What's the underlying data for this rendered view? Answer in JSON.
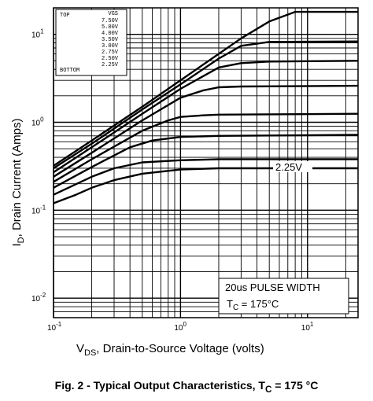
{
  "caption": {
    "text": "Fig. 2 - Typical Output Characteristics, T",
    "sub": "C",
    "suffix": " = 175 °C"
  },
  "chart_data": {
    "type": "line",
    "xscale": "log",
    "yscale": "log",
    "xlim": [
      0.1,
      25
    ],
    "ylim": [
      0.006,
      20
    ],
    "grid": true,
    "xlabel": {
      "main": "V",
      "sub": "DS",
      "rest": ", Drain-to-Source Voltage (volts)"
    },
    "ylabel": {
      "main": "I",
      "sub": "D",
      "rest": ", Drain Current (Amps)"
    },
    "x_ticks": [
      {
        "base": "10",
        "exp": "-1",
        "value": 0.1
      },
      {
        "base": "10",
        "exp": "0",
        "value": 1
      },
      {
        "base": "10",
        "exp": "1",
        "value": 10
      }
    ],
    "y_ticks": [
      {
        "base": "10",
        "exp": "-2",
        "value": 0.01
      },
      {
        "base": "10",
        "exp": "-1",
        "value": 0.1
      },
      {
        "base": "10",
        "exp": "0",
        "value": 1
      },
      {
        "base": "10",
        "exp": "1",
        "value": 10
      }
    ],
    "legend": {
      "header_left": "TOP",
      "header_right": "VGS",
      "entries": [
        "7.50V",
        "5.00V",
        "4.00V",
        "3.50V",
        "3.00V",
        "2.75V",
        "2.50V",
        "2.25V"
      ],
      "bottom_label": "BOTTOM",
      "placement": "top-left"
    },
    "annotation_label": "2.25V",
    "pulse_box": {
      "line1": "20us PULSE WIDTH",
      "line2_main": "T",
      "line2_sub": "C",
      "line2_rest": " = 175°C",
      "placement": "bottom-right"
    },
    "series": [
      {
        "name": "7.50V",
        "x": [
          0.1,
          0.2,
          0.5,
          1,
          2,
          3,
          5,
          8,
          25
        ],
        "y": [
          0.32,
          0.62,
          1.5,
          3.0,
          6.0,
          9.0,
          14,
          18,
          18
        ]
      },
      {
        "name": "5.00V",
        "x": [
          0.1,
          0.2,
          0.5,
          1,
          2,
          3,
          5,
          25
        ],
        "y": [
          0.3,
          0.57,
          1.4,
          2.7,
          5.3,
          7.4,
          8.2,
          8.3
        ]
      },
      {
        "name": "4.00V",
        "x": [
          0.1,
          0.2,
          0.5,
          1,
          2,
          3,
          5,
          25
        ],
        "y": [
          0.27,
          0.52,
          1.25,
          2.4,
          4.2,
          4.7,
          4.9,
          5.0
        ]
      },
      {
        "name": "3.50V",
        "x": [
          0.1,
          0.2,
          0.5,
          1,
          1.5,
          2,
          3,
          25
        ],
        "y": [
          0.24,
          0.45,
          1.05,
          1.9,
          2.3,
          2.5,
          2.55,
          2.6
        ]
      },
      {
        "name": "3.00V",
        "x": [
          0.1,
          0.2,
          0.5,
          0.8,
          1,
          1.5,
          2,
          25
        ],
        "y": [
          0.21,
          0.38,
          0.8,
          1.05,
          1.15,
          1.2,
          1.22,
          1.25
        ]
      },
      {
        "name": "2.75V",
        "x": [
          0.1,
          0.2,
          0.4,
          0.6,
          1,
          2,
          25
        ],
        "y": [
          0.18,
          0.31,
          0.52,
          0.62,
          0.68,
          0.7,
          0.72
        ]
      },
      {
        "name": "2.50V",
        "x": [
          0.1,
          0.2,
          0.3,
          0.5,
          1,
          2,
          25
        ],
        "y": [
          0.15,
          0.24,
          0.3,
          0.35,
          0.37,
          0.38,
          0.38
        ]
      },
      {
        "name": "2.25V",
        "x": [
          0.1,
          0.15,
          0.2,
          0.3,
          0.5,
          0.8,
          1,
          2,
          25
        ],
        "y": [
          0.12,
          0.15,
          0.18,
          0.22,
          0.26,
          0.28,
          0.29,
          0.3,
          0.3
        ]
      }
    ]
  }
}
